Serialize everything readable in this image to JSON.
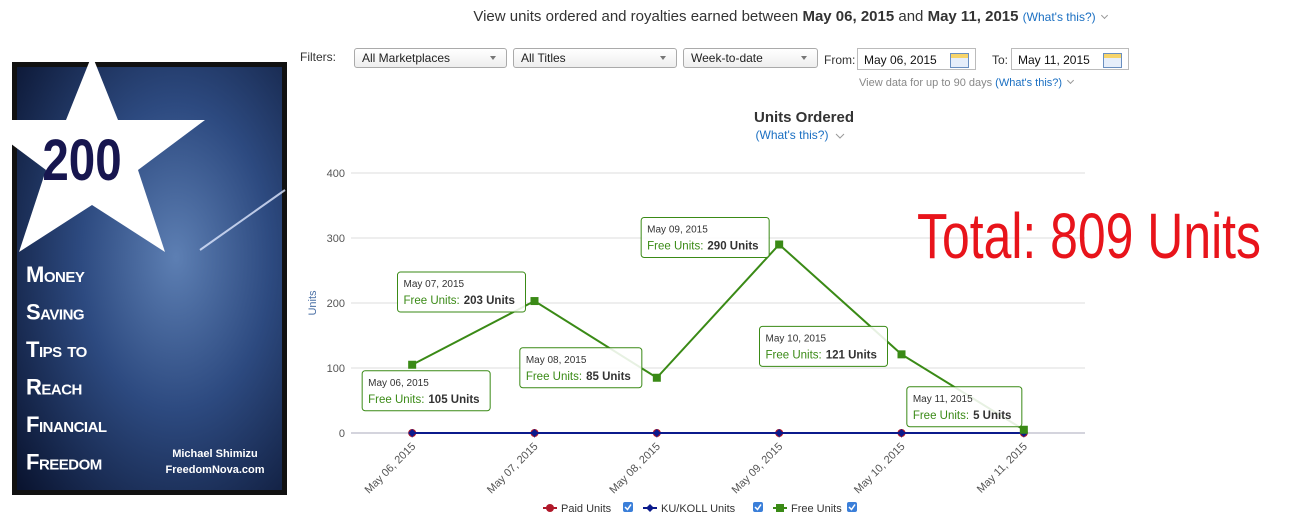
{
  "header": {
    "intro": "View units ordered and royalties earned between",
    "start": "May 06, 2015",
    "and": "and",
    "end": "May 11, 2015",
    "link": "(What's this?)"
  },
  "filters": {
    "label": "Filters:",
    "marketplace": "All Marketplaces",
    "titles": "All Titles",
    "period": "Week-to-date",
    "from_label": "From:",
    "from_date": "May 06, 2015",
    "to_label": "To:",
    "to_date": "May 11, 2015",
    "note": "View data for up to 90 days",
    "note_link": "(What's this?)"
  },
  "book": {
    "number": "200",
    "lines": [
      "Money",
      "Saving",
      "Tips to",
      "Reach",
      "Financial",
      "Freedom"
    ],
    "author": "Michael Shimizu",
    "site": "FreedomNova.com"
  },
  "chart_data": {
    "type": "line",
    "title": "Units Ordered",
    "subtitle": "(What's this?)",
    "y_label": "Units",
    "categories": [
      "May 06, 2015",
      "May 07, 2015",
      "May 08, 2015",
      "May 09, 2015",
      "May 10, 2015",
      "May 11, 2015"
    ],
    "series": [
      {
        "name": "Paid Units",
        "color": "#b0182a",
        "marker": "circle",
        "values": [
          0,
          0,
          0,
          0,
          0,
          0
        ]
      },
      {
        "name": "KU/KOLL Units",
        "color": "#0b1a8c",
        "marker": "diamond",
        "values": [
          0,
          0,
          0,
          0,
          0,
          0
        ]
      },
      {
        "name": "Free Units",
        "color": "#3a8a16",
        "marker": "square",
        "values": [
          105,
          203,
          85,
          290,
          121,
          5
        ],
        "value_labels": [
          "105 Units",
          "203 Units",
          "85 Units",
          "290 Units",
          "121 Units",
          "5 Units"
        ]
      }
    ],
    "tooltip_label": "Free Units:",
    "ylim": [
      0,
      400
    ],
    "yticks": [
      0,
      100,
      200,
      300,
      400
    ],
    "grid": true,
    "annotation": "Total: 809 Units"
  }
}
